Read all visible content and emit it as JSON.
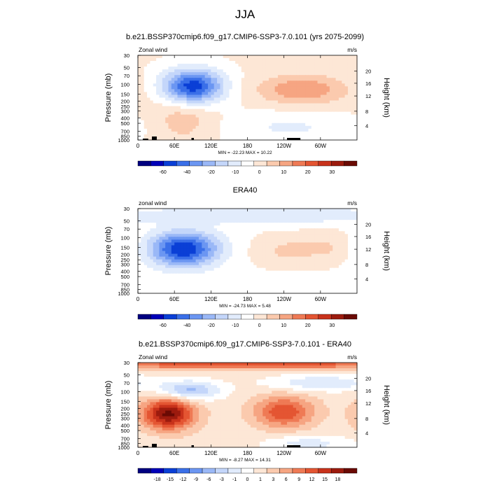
{
  "figure": {
    "title": "JJA"
  },
  "colors": {
    "palette": [
      "#000080",
      "#0000b8",
      "#0a3fd6",
      "#3a6fe8",
      "#6b96f2",
      "#9ab8f7",
      "#c4d6fa",
      "#e2ecfc",
      "#ffffff",
      "#fde7d6",
      "#fbcaae",
      "#f6a582",
      "#ef7a55",
      "#e45532",
      "#c8321b",
      "#9c1b0e",
      "#6a0a04"
    ]
  },
  "chart_data": [
    {
      "type": "heatmap",
      "title": "b.e21.BSSP370cmip6.f09_g17.CMIP6-SSP3-7.0.101 (yrs 2075-2099)",
      "variable_label": "Zonal wind",
      "units": "m/s",
      "ylabel": "Pressure (mb)",
      "ylabel_right": "Height (km)",
      "x_ticks": [
        "0",
        "60E",
        "120E",
        "180",
        "120W",
        "60W"
      ],
      "y_ticks": [
        "30",
        "50",
        "70",
        "100",
        "150",
        "200",
        "250",
        "300",
        "400",
        "500",
        "700",
        "850",
        "1000"
      ],
      "height_ticks": [
        "20",
        "16",
        "12",
        "8",
        "4"
      ],
      "stats": "MIN = -22.23  MAX = 10.22",
      "min": -22.23,
      "max": 10.22,
      "colorbar_labels": [
        "-60",
        "-40",
        "-20",
        "-10",
        "0",
        "10",
        "20",
        "30"
      ],
      "background_value": 2,
      "features": [
        {
          "lon": 90,
          "p": 110,
          "value": -22,
          "dlon": 35,
          "dlogp": 0.22
        },
        {
          "lon": 270,
          "p": 125,
          "value": 9,
          "dlon": 50,
          "dlogp": 0.18
        },
        {
          "lon": 75,
          "p": 400,
          "value": 5,
          "dlon": 35,
          "dlogp": 0.3
        },
        {
          "lon": 250,
          "p": 600,
          "value": -4,
          "dlon": 80,
          "dlogp": 0.2
        }
      ]
    },
    {
      "type": "heatmap",
      "title": "ERA40",
      "variable_label": "zonal wind",
      "units": "m/s",
      "ylabel": "Pressure (mb)",
      "ylabel_right": "Height (km)",
      "x_ticks": [
        "0",
        "60E",
        "120E",
        "180",
        "120W",
        "60W"
      ],
      "y_ticks": [
        "30",
        "50",
        "70",
        "100",
        "150",
        "200",
        "250",
        "300",
        "400",
        "500",
        "700",
        "850",
        "1000"
      ],
      "height_ticks": [
        "20",
        "16",
        "12",
        "8",
        "4"
      ],
      "stats": "MIN = -24.73  MAX = 5.48",
      "min": -24.73,
      "max": 5.48,
      "colorbar_labels": [
        "-60",
        "-40",
        "-20",
        "-10",
        "0",
        "10",
        "20",
        "30"
      ],
      "background_value": 1,
      "features": [
        {
          "lon": 75,
          "p": 160,
          "value": -24,
          "dlon": 40,
          "dlogp": 0.22
        },
        {
          "lon": 200,
          "p": 40,
          "value": -6,
          "dlon": 200,
          "dlogp": 0.1
        },
        {
          "lon": 245,
          "p": 170,
          "value": 5,
          "dlon": 40,
          "dlogp": 0.2
        },
        {
          "lon": 320,
          "p": 150,
          "value": 4,
          "dlon": 30,
          "dlogp": 0.2
        }
      ]
    },
    {
      "type": "heatmap",
      "title": "b.e21.BSSP370cmip6.f09_g17.CMIP6-SSP3-7.0.101 - ERA40",
      "variable_label": "Zonal wind",
      "units": "m/s",
      "ylabel": "Pressure (mb)",
      "ylabel_right": "Height (km)",
      "x_ticks": [
        "0",
        "60E",
        "120E",
        "180",
        "120W",
        "60W"
      ],
      "y_ticks": [
        "30",
        "50",
        "70",
        "100",
        "150",
        "200",
        "250",
        "300",
        "400",
        "500",
        "700",
        "850",
        "1000"
      ],
      "height_ticks": [
        "20",
        "16",
        "12",
        "8",
        "4"
      ],
      "stats": "MIN = -8.27  MAX = 14.31",
      "min": -8.27,
      "max": 14.31,
      "colorbar_labels": [
        "-18",
        "-15",
        "-12",
        "-9",
        "-6",
        "-3",
        "-1",
        "0",
        "1",
        "3",
        "6",
        "9",
        "12",
        "15",
        "18"
      ],
      "background_value": 2,
      "features": [
        {
          "lon": 50,
          "p": 250,
          "value": 14,
          "dlon": 30,
          "dlogp": 0.2
        },
        {
          "lon": 85,
          "p": 95,
          "value": -8,
          "dlon": 35,
          "dlogp": 0.12
        },
        {
          "lon": 240,
          "p": 230,
          "value": 9,
          "dlon": 35,
          "dlogp": 0.2
        },
        {
          "lon": 180,
          "p": 32,
          "value": 9,
          "dlon": 220,
          "dlogp": 0.06
        },
        {
          "lon": 300,
          "p": 70,
          "value": -5,
          "dlon": 60,
          "dlogp": 0.1
        },
        {
          "lon": 280,
          "p": 850,
          "value": -4,
          "dlon": 50,
          "dlogp": 0.1
        }
      ]
    }
  ]
}
